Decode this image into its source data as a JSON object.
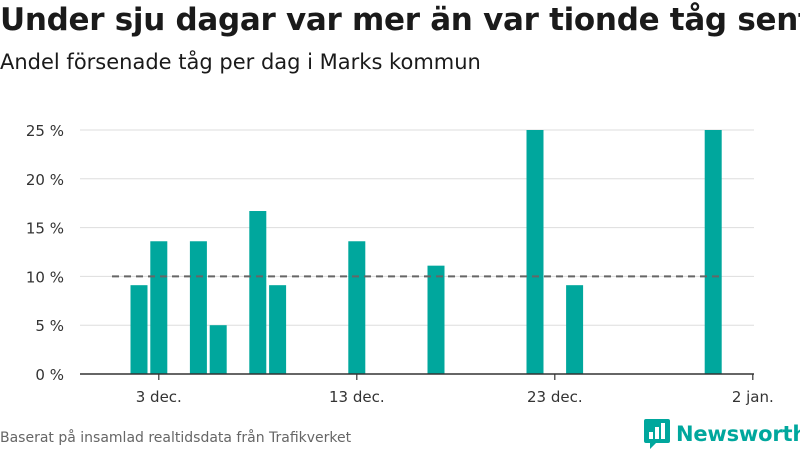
{
  "header": {
    "title": "Under sju dagar var mer än var tionde tåg sent",
    "subtitle": "Andel försenade tåg per dag i Marks kommun"
  },
  "footer": {
    "source": "Baserat på insamlad realtidsdata från Trafikverket",
    "brand": "Newsworthy"
  },
  "colors": {
    "bar": "#00a79d",
    "reference_line": "#666666",
    "grid": "#dddddd",
    "brand": "#00a79d"
  },
  "chart_data": {
    "type": "bar",
    "title": "Under sju dagar var mer än var tionde tåg sent",
    "subtitle": "Andel försenade tåg per dag i Marks kommun",
    "xlabel": "",
    "ylabel": "",
    "x_ticks": [
      {
        "x": 3,
        "label": "3 dec."
      },
      {
        "x": 13,
        "label": "13 dec."
      },
      {
        "x": 23,
        "label": "23 dec."
      },
      {
        "x": 33,
        "label": "2 jan."
      }
    ],
    "x_range": [
      -0.5,
      33.5
    ],
    "y_ticks": [
      {
        "value": 0,
        "label": "0 %"
      },
      {
        "value": 5,
        "label": "5 %"
      },
      {
        "value": 10,
        "label": "10 %"
      },
      {
        "value": 15,
        "label": "15 %"
      },
      {
        "value": 20,
        "label": "20 %"
      },
      {
        "value": 25,
        "label": "25 %"
      }
    ],
    "ylim": [
      0,
      25
    ],
    "grid": true,
    "reference_value": 10,
    "bars": [
      {
        "date": "2 dec.",
        "x": 2,
        "value": 9.1
      },
      {
        "date": "3 dec.",
        "x": 3,
        "value": 13.6
      },
      {
        "date": "5 dec.",
        "x": 5,
        "value": 13.6
      },
      {
        "date": "6 dec.",
        "x": 6,
        "value": 5.0
      },
      {
        "date": "8 dec.",
        "x": 8,
        "value": 16.7
      },
      {
        "date": "9 dec.",
        "x": 9,
        "value": 9.1
      },
      {
        "date": "13 dec.",
        "x": 13,
        "value": 13.6
      },
      {
        "date": "17 dec.",
        "x": 17,
        "value": 11.1
      },
      {
        "date": "22 dec.",
        "x": 22,
        "value": 25.0
      },
      {
        "date": "24 dec.",
        "x": 24,
        "value": 9.1
      },
      {
        "date": "31 dec.",
        "x": 31,
        "value": 25.0
      }
    ]
  }
}
